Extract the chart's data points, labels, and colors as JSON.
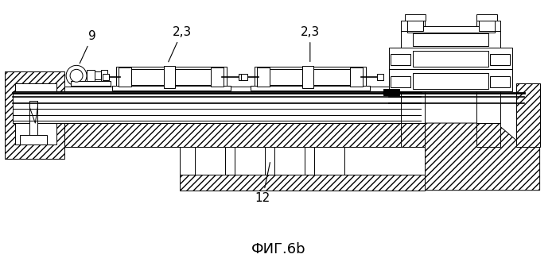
{
  "title": "ФИГ.6b",
  "bg_color": "#ffffff",
  "line_color": "#000000",
  "figsize": [
    6.99,
    3.3
  ],
  "dpi": 100
}
